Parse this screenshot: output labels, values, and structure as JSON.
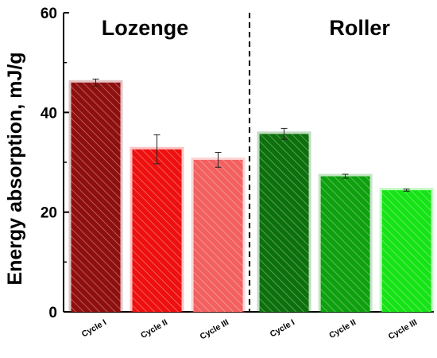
{
  "chart_data": {
    "type": "bar",
    "ylabel": "Energy absorption, mJ/g",
    "ylim": [
      0,
      60
    ],
    "yticks": [
      0,
      20,
      40,
      60
    ],
    "groups": [
      {
        "name": "Lozenge",
        "categories": [
          "Cycle I",
          "Cycle II",
          "Cycle III"
        ],
        "values": [
          46.0,
          32.6,
          30.5
        ],
        "errors": [
          0.7,
          2.9,
          1.5
        ],
        "colors": [
          "#8f0f0f",
          "#ee0f0f",
          "#f26060"
        ]
      },
      {
        "name": "Roller",
        "categories": [
          "Cycle I",
          "Cycle II",
          "Cycle III"
        ],
        "values": [
          35.7,
          27.2,
          24.4
        ],
        "errors": [
          1.1,
          0.4,
          0.2
        ],
        "colors": [
          "#0c700c",
          "#0ea00e",
          "#15e315"
        ]
      }
    ],
    "hatch": "diagonal",
    "divider": "dashed line between groups",
    "grid": false,
    "legend": "none"
  }
}
